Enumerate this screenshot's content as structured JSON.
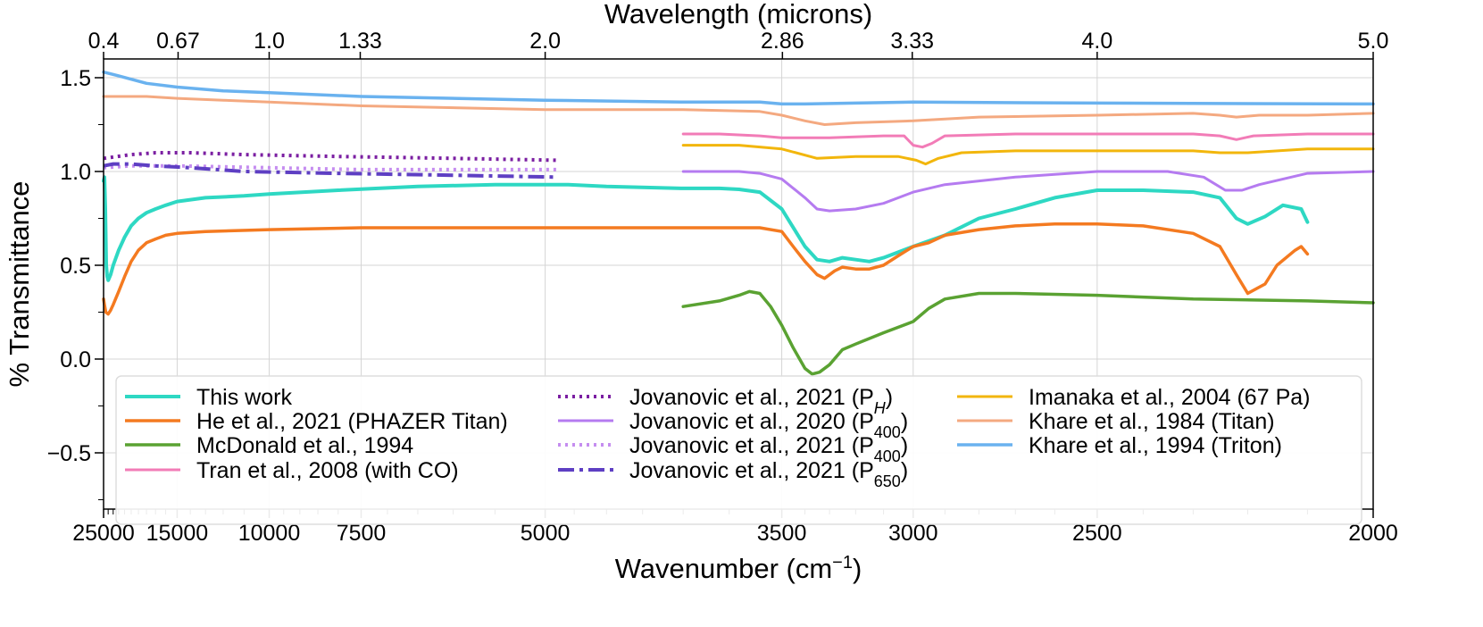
{
  "chart_data": {
    "type": "line",
    "xlabel": "Wavenumber (cm",
    "xlabel_sup": "−1",
    "xlabel_close": ")",
    "ylabel": "% Transmittance",
    "x2label": "Wavelength (microns)",
    "xlim": [
      25000,
      2000
    ],
    "ylim": [
      -0.8,
      1.6
    ],
    "xscale": "reciprocal",
    "grid": true,
    "legend_position": "lower-center",
    "legend_columns": 3,
    "x_ticks": [
      {
        "value": 25000,
        "label": "25000"
      },
      {
        "value": 15000,
        "label": "15000"
      },
      {
        "value": 10000,
        "label": "10000"
      },
      {
        "value": 7500,
        "label": "7500"
      },
      {
        "value": 5000,
        "label": "5000"
      },
      {
        "value": 3500,
        "label": "3500"
      },
      {
        "value": 3000,
        "label": "3000"
      },
      {
        "value": 2500,
        "label": "2500"
      },
      {
        "value": 2000,
        "label": "2000"
      }
    ],
    "x2_ticks": [
      {
        "value": 25000,
        "label": "0.4"
      },
      {
        "value": 14925,
        "label": "0.67"
      },
      {
        "value": 10000,
        "label": "1.0"
      },
      {
        "value": 7519,
        "label": "1.33"
      },
      {
        "value": 5000,
        "label": "2.0"
      },
      {
        "value": 3497,
        "label": "2.86"
      },
      {
        "value": 3003,
        "label": "3.33"
      },
      {
        "value": 2500,
        "label": "4.0"
      },
      {
        "value": 2000,
        "label": "5.0"
      }
    ],
    "y_ticks": [
      {
        "value": 1.5,
        "label": "1.5"
      },
      {
        "value": 1.0,
        "label": "1.0"
      },
      {
        "value": 0.5,
        "label": "0.5"
      },
      {
        "value": 0.0,
        "label": "0.0"
      },
      {
        "value": -0.5,
        "label": "−0.5"
      }
    ],
    "series": [
      {
        "name": "This work",
        "color": "#2ed8c3",
        "style": "solid",
        "width": 4,
        "points": [
          [
            25000,
            0.95
          ],
          [
            24800,
            0.97
          ],
          [
            24600,
            0.8
          ],
          [
            24400,
            0.5
          ],
          [
            24200,
            0.44
          ],
          [
            24000,
            0.42
          ],
          [
            23500,
            0.45
          ],
          [
            23000,
            0.5
          ],
          [
            22000,
            0.58
          ],
          [
            21000,
            0.65
          ],
          [
            20000,
            0.71
          ],
          [
            19000,
            0.75
          ],
          [
            18000,
            0.78
          ],
          [
            17000,
            0.8
          ],
          [
            16000,
            0.82
          ],
          [
            15000,
            0.84
          ],
          [
            13000,
            0.86
          ],
          [
            11000,
            0.87
          ],
          [
            10000,
            0.88
          ],
          [
            8000,
            0.9
          ],
          [
            6500,
            0.92
          ],
          [
            5500,
            0.93
          ],
          [
            5000,
            0.93
          ],
          [
            4800,
            0.93
          ],
          [
            4500,
            0.92
          ],
          [
            4000,
            0.91
          ],
          [
            3800,
            0.91
          ],
          [
            3700,
            0.905
          ],
          [
            3600,
            0.89
          ],
          [
            3500,
            0.8
          ],
          [
            3400,
            0.6
          ],
          [
            3350,
            0.53
          ],
          [
            3300,
            0.52
          ],
          [
            3250,
            0.54
          ],
          [
            3200,
            0.53
          ],
          [
            3150,
            0.52
          ],
          [
            3100,
            0.54
          ],
          [
            3000,
            0.6
          ],
          [
            2900,
            0.66
          ],
          [
            2800,
            0.75
          ],
          [
            2700,
            0.8
          ],
          [
            2600,
            0.86
          ],
          [
            2500,
            0.9
          ],
          [
            2400,
            0.9
          ],
          [
            2300,
            0.89
          ],
          [
            2250,
            0.86
          ],
          [
            2220,
            0.75
          ],
          [
            2200,
            0.72
          ],
          [
            2170,
            0.76
          ],
          [
            2140,
            0.82
          ],
          [
            2110,
            0.8
          ],
          [
            2100,
            0.73
          ]
        ]
      },
      {
        "name": "He et al., 2021 (PHAZER Titan)",
        "color": "#f47a20",
        "style": "solid",
        "width": 3.5,
        "points": [
          [
            25000,
            0.32
          ],
          [
            24800,
            0.29
          ],
          [
            24500,
            0.25
          ],
          [
            24000,
            0.24
          ],
          [
            23500,
            0.26
          ],
          [
            23000,
            0.29
          ],
          [
            22000,
            0.36
          ],
          [
            21000,
            0.44
          ],
          [
            20000,
            0.52
          ],
          [
            19000,
            0.58
          ],
          [
            18000,
            0.62
          ],
          [
            17000,
            0.64
          ],
          [
            16000,
            0.66
          ],
          [
            15000,
            0.67
          ],
          [
            13000,
            0.68
          ],
          [
            10000,
            0.69
          ],
          [
            7500,
            0.7
          ],
          [
            5000,
            0.7
          ],
          [
            4000,
            0.7
          ],
          [
            3600,
            0.7
          ],
          [
            3500,
            0.68
          ],
          [
            3450,
            0.6
          ],
          [
            3400,
            0.52
          ],
          [
            3350,
            0.45
          ],
          [
            3320,
            0.43
          ],
          [
            3280,
            0.47
          ],
          [
            3250,
            0.49
          ],
          [
            3200,
            0.48
          ],
          [
            3150,
            0.48
          ],
          [
            3100,
            0.5
          ],
          [
            3050,
            0.55
          ],
          [
            3000,
            0.6
          ],
          [
            2950,
            0.62
          ],
          [
            2900,
            0.66
          ],
          [
            2800,
            0.69
          ],
          [
            2700,
            0.71
          ],
          [
            2600,
            0.72
          ],
          [
            2500,
            0.72
          ],
          [
            2400,
            0.71
          ],
          [
            2300,
            0.67
          ],
          [
            2250,
            0.6
          ],
          [
            2220,
            0.45
          ],
          [
            2200,
            0.35
          ],
          [
            2170,
            0.4
          ],
          [
            2150,
            0.5
          ],
          [
            2120,
            0.58
          ],
          [
            2110,
            0.6
          ],
          [
            2100,
            0.56
          ]
        ]
      },
      {
        "name": "McDonald et al., 1994",
        "color": "#5aa232",
        "style": "solid",
        "width": 3.5,
        "points": [
          [
            4000,
            0.28
          ],
          [
            3800,
            0.31
          ],
          [
            3700,
            0.34
          ],
          [
            3650,
            0.36
          ],
          [
            3600,
            0.35
          ],
          [
            3550,
            0.28
          ],
          [
            3500,
            0.18
          ],
          [
            3450,
            0.06
          ],
          [
            3400,
            -0.05
          ],
          [
            3370,
            -0.08
          ],
          [
            3340,
            -0.07
          ],
          [
            3300,
            -0.03
          ],
          [
            3250,
            0.05
          ],
          [
            3200,
            0.08
          ],
          [
            3100,
            0.14
          ],
          [
            3000,
            0.2
          ],
          [
            2950,
            0.27
          ],
          [
            2900,
            0.32
          ],
          [
            2800,
            0.35
          ],
          [
            2700,
            0.35
          ],
          [
            2500,
            0.34
          ],
          [
            2300,
            0.32
          ],
          [
            2100,
            0.31
          ],
          [
            2000,
            0.3
          ]
        ]
      },
      {
        "name": "Tran et al., 2008 (with CO)",
        "color": "#f27cb7",
        "style": "solid",
        "width": 3,
        "points": [
          [
            4000,
            1.2
          ],
          [
            3800,
            1.2
          ],
          [
            3600,
            1.19
          ],
          [
            3500,
            1.18
          ],
          [
            3300,
            1.18
          ],
          [
            3100,
            1.19
          ],
          [
            3030,
            1.19
          ],
          [
            3000,
            1.14
          ],
          [
            2970,
            1.13
          ],
          [
            2940,
            1.15
          ],
          [
            2900,
            1.19
          ],
          [
            2700,
            1.2
          ],
          [
            2500,
            1.2
          ],
          [
            2300,
            1.2
          ],
          [
            2250,
            1.19
          ],
          [
            2220,
            1.17
          ],
          [
            2190,
            1.19
          ],
          [
            2100,
            1.2
          ],
          [
            2000,
            1.2
          ]
        ]
      },
      {
        "name": "Jovanovic et al., 2021 (PH)",
        "legend_base": "Jovanovic et al., 2021 (P",
        "legend_sub": "H",
        "legend_close": ")",
        "color": "#7b1fa2",
        "style": "dotted",
        "width": 4,
        "points": [
          [
            25000,
            1.07
          ],
          [
            20000,
            1.09
          ],
          [
            17000,
            1.1
          ],
          [
            14000,
            1.1
          ],
          [
            11000,
            1.09
          ],
          [
            8000,
            1.08
          ],
          [
            6000,
            1.07
          ],
          [
            4900,
            1.06
          ]
        ]
      },
      {
        "name": "Jovanovic et al., 2020 (P₄₀₀)",
        "legend_base": "Jovanovic et al., 2020 (P",
        "legend_sub": "400",
        "legend_close": ")",
        "color": "#b57bf0",
        "style": "solid",
        "width": 3,
        "points": [
          [
            4000,
            1.0
          ],
          [
            3700,
            1.0
          ],
          [
            3600,
            0.99
          ],
          [
            3500,
            0.96
          ],
          [
            3400,
            0.86
          ],
          [
            3350,
            0.8
          ],
          [
            3300,
            0.79
          ],
          [
            3200,
            0.8
          ],
          [
            3100,
            0.83
          ],
          [
            3000,
            0.89
          ],
          [
            2900,
            0.93
          ],
          [
            2700,
            0.97
          ],
          [
            2500,
            1.0
          ],
          [
            2350,
            1.0
          ],
          [
            2280,
            0.97
          ],
          [
            2240,
            0.9
          ],
          [
            2210,
            0.9
          ],
          [
            2180,
            0.93
          ],
          [
            2100,
            0.99
          ],
          [
            2000,
            1.0
          ]
        ]
      },
      {
        "name": "Jovanovic et al., 2021 (P₄₀₀)",
        "legend_base": "Jovanovic et al., 2021 (P",
        "legend_sub": "400",
        "legend_close": ")",
        "color": "#c58df0",
        "style": "dotted",
        "width": 4,
        "points": [
          [
            25000,
            1.02
          ],
          [
            20000,
            1.03
          ],
          [
            15000,
            1.03
          ],
          [
            10000,
            1.02
          ],
          [
            7500,
            1.01
          ],
          [
            5000,
            1.01
          ],
          [
            4900,
            1.01
          ]
        ]
      },
      {
        "name": "Jovanovic et al., 2021 (P₆₅₀)",
        "legend_base": "Jovanovic et al., 2021 (P",
        "legend_sub": "650",
        "legend_close": ")",
        "color": "#5e3fc3",
        "style": "dashdot",
        "width": 4,
        "points": [
          [
            25000,
            1.03
          ],
          [
            23000,
            1.04
          ],
          [
            20000,
            1.04
          ],
          [
            17000,
            1.03
          ],
          [
            14000,
            1.02
          ],
          [
            11000,
            1.0
          ],
          [
            8000,
            0.99
          ],
          [
            6000,
            0.98
          ],
          [
            4900,
            0.97
          ]
        ]
      },
      {
        "name": "Imanaka et al., 2004 (67 Pa)",
        "color": "#f2b60c",
        "style": "solid",
        "width": 3,
        "points": [
          [
            4000,
            1.14
          ],
          [
            3700,
            1.14
          ],
          [
            3500,
            1.12
          ],
          [
            3350,
            1.07
          ],
          [
            3200,
            1.08
          ],
          [
            3050,
            1.08
          ],
          [
            2990,
            1.06
          ],
          [
            2960,
            1.04
          ],
          [
            2920,
            1.07
          ],
          [
            2850,
            1.1
          ],
          [
            2700,
            1.11
          ],
          [
            2500,
            1.11
          ],
          [
            2300,
            1.11
          ],
          [
            2250,
            1.1
          ],
          [
            2200,
            1.1
          ],
          [
            2100,
            1.12
          ],
          [
            2000,
            1.12
          ]
        ]
      },
      {
        "name": "Khare et al., 1984 (Titan)",
        "color": "#f4a980",
        "style": "solid",
        "width": 3,
        "points": [
          [
            25000,
            1.4
          ],
          [
            22000,
            1.4
          ],
          [
            18000,
            1.4
          ],
          [
            15000,
            1.39
          ],
          [
            12000,
            1.38
          ],
          [
            10000,
            1.37
          ],
          [
            7500,
            1.35
          ],
          [
            5000,
            1.33
          ],
          [
            4000,
            1.33
          ],
          [
            3600,
            1.32
          ],
          [
            3500,
            1.3
          ],
          [
            3400,
            1.27
          ],
          [
            3320,
            1.25
          ],
          [
            3200,
            1.26
          ],
          [
            3000,
            1.27
          ],
          [
            2800,
            1.29
          ],
          [
            2500,
            1.3
          ],
          [
            2300,
            1.31
          ],
          [
            2250,
            1.3
          ],
          [
            2220,
            1.29
          ],
          [
            2180,
            1.3
          ],
          [
            2100,
            1.3
          ],
          [
            2000,
            1.31
          ]
        ]
      },
      {
        "name": "Khare et al., 1994 (Triton)",
        "color": "#6ab2ef",
        "style": "solid",
        "width": 3.5,
        "points": [
          [
            25000,
            1.53
          ],
          [
            22000,
            1.51
          ],
          [
            18000,
            1.47
          ],
          [
            15000,
            1.45
          ],
          [
            12000,
            1.43
          ],
          [
            10000,
            1.42
          ],
          [
            7500,
            1.4
          ],
          [
            5000,
            1.38
          ],
          [
            4000,
            1.37
          ],
          [
            3600,
            1.37
          ],
          [
            3500,
            1.36
          ],
          [
            3400,
            1.36
          ],
          [
            3200,
            1.365
          ],
          [
            3000,
            1.37
          ],
          [
            2500,
            1.365
          ],
          [
            2000,
            1.36
          ]
        ]
      }
    ]
  }
}
